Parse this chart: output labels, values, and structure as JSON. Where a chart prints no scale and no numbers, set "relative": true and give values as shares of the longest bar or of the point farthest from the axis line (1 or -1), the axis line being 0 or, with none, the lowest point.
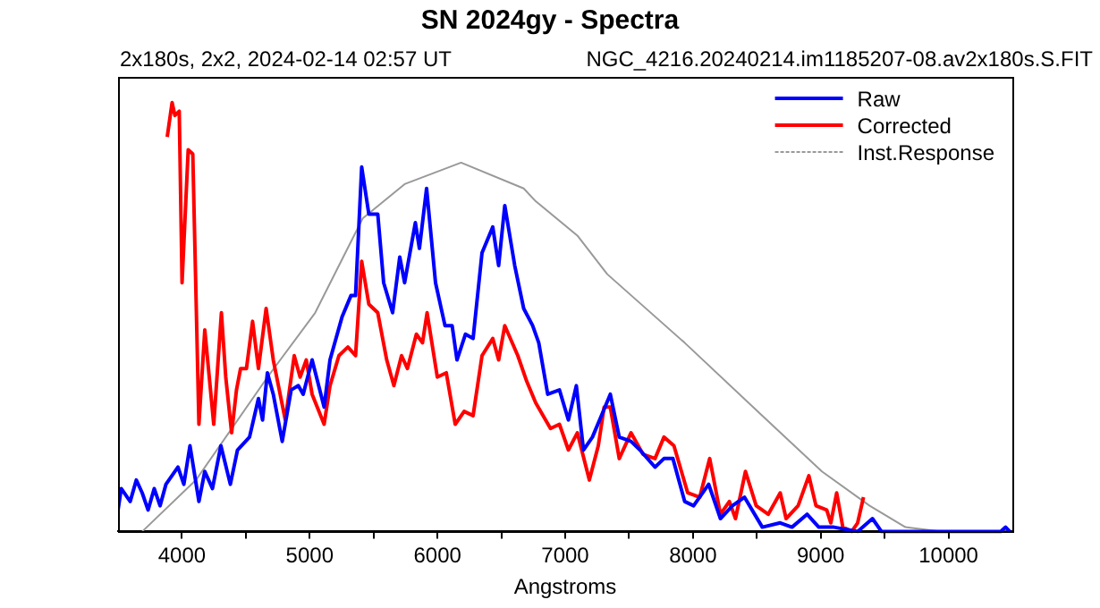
{
  "chart_data": {
    "type": "line",
    "title": "SN 2024gy - Spectra",
    "subtitle": "2x180s, 2x2, 2024-02-14 02:57 UT",
    "xlabel": "Angstroms",
    "relative": true,
    "annotations": [
      "NGC_4216.20240214.im1185207-08.av2x180s.S.FIT"
    ],
    "xlim": [
      3500,
      10500
    ],
    "xticks": [
      4000,
      {
        "value": 4500,
        "label": null
      },
      5000,
      {
        "value": 5500,
        "label": null
      },
      6000,
      {
        "value": 6500,
        "label": null
      },
      7000,
      {
        "value": 7500,
        "label": null
      },
      8000,
      {
        "value": 8500,
        "label": null
      },
      9000,
      {
        "value": 9500,
        "label": null
      },
      10000
    ],
    "grid": false,
    "legend": "top right",
    "marker": "none",
    "line_style": "solid",
    "series": [
      {
        "name": "Raw",
        "color": "#0000ff",
        "x": [
          3500,
          3525,
          3595,
          3643,
          3689,
          3735,
          3783,
          3829,
          3875,
          3969,
          4015,
          4063,
          4133,
          4179,
          4239,
          4305,
          4379,
          4435,
          4529,
          4599,
          4631,
          4669,
          4715,
          4785,
          4855,
          4911,
          4949,
          5019,
          5113,
          5159,
          5253,
          5323,
          5359,
          5407,
          5463,
          5533,
          5579,
          5649,
          5705,
          5743,
          5827,
          5859,
          5915,
          5985,
          6059,
          6115,
          6153,
          6219,
          6279,
          6349,
          6433,
          6479,
          6527,
          6605,
          6675,
          6745,
          6793,
          6863,
          6955,
          7025,
          7087,
          7143,
          7213,
          7283,
          7353,
          7423,
          7515,
          7585,
          7703,
          7773,
          7843,
          7935,
          8005,
          8123,
          8215,
          8309,
          8403,
          8543,
          8683,
          8775,
          8893,
          8985,
          9103,
          9289,
          9405,
          9475,
          9803,
          10409,
          10447,
          10479
        ],
        "values": [
          0.05,
          0.1,
          0.07,
          0.12,
          0.09,
          0.05,
          0.1,
          0.06,
          0.11,
          0.15,
          0.11,
          0.2,
          0.07,
          0.14,
          0.1,
          0.2,
          0.11,
          0.19,
          0.22,
          0.31,
          0.26,
          0.37,
          0.32,
          0.21,
          0.33,
          0.34,
          0.32,
          0.4,
          0.29,
          0.4,
          0.5,
          0.55,
          0.55,
          0.85,
          0.74,
          0.74,
          0.58,
          0.51,
          0.64,
          0.58,
          0.72,
          0.66,
          0.8,
          0.58,
          0.48,
          0.48,
          0.4,
          0.46,
          0.45,
          0.65,
          0.71,
          0.62,
          0.76,
          0.62,
          0.52,
          0.48,
          0.44,
          0.32,
          0.33,
          0.26,
          0.34,
          0.19,
          0.22,
          0.27,
          0.32,
          0.22,
          0.21,
          0.19,
          0.15,
          0.17,
          0.17,
          0.07,
          0.06,
          0.11,
          0.03,
          0.06,
          0.08,
          0.01,
          0.02,
          0.01,
          0.04,
          0.01,
          0.01,
          0.0,
          0.03,
          0.0,
          0.0,
          0.0,
          0.01,
          0.0
        ]
      },
      {
        "name": "Corrected",
        "color": "#ff0000",
        "x": [
          3885,
          3923,
          3945,
          3979,
          4001,
          4049,
          4085,
          4133,
          4179,
          4249,
          4309,
          4343,
          4389,
          4427,
          4459,
          4505,
          4553,
          4599,
          4659,
          4715,
          4809,
          4879,
          4925,
          4973,
          5019,
          5113,
          5159,
          5229,
          5299,
          5359,
          5407,
          5463,
          5533,
          5603,
          5659,
          5719,
          5765,
          5835,
          5883,
          5919,
          5999,
          6069,
          6139,
          6209,
          6279,
          6349,
          6433,
          6479,
          6527,
          6629,
          6699,
          6769,
          6885,
          6955,
          7025,
          7095,
          7189,
          7259,
          7305,
          7353,
          7423,
          7515,
          7609,
          7703,
          7773,
          7851,
          7959,
          8053,
          8131,
          8215,
          8285,
          8333,
          8411,
          8495,
          8589,
          8683,
          8729,
          8823,
          8907,
          8963,
          9047,
          9079,
          9125,
          9173,
          9243,
          9289,
          9335
        ],
        "values": [
          0.92,
          1.0,
          0.97,
          0.98,
          0.58,
          0.89,
          0.88,
          0.25,
          0.47,
          0.25,
          0.51,
          0.36,
          0.23,
          0.33,
          0.38,
          0.38,
          0.49,
          0.38,
          0.52,
          0.4,
          0.26,
          0.41,
          0.36,
          0.4,
          0.32,
          0.25,
          0.34,
          0.41,
          0.43,
          0.41,
          0.63,
          0.53,
          0.51,
          0.4,
          0.34,
          0.41,
          0.38,
          0.46,
          0.44,
          0.51,
          0.36,
          0.37,
          0.25,
          0.28,
          0.27,
          0.41,
          0.45,
          0.4,
          0.48,
          0.41,
          0.35,
          0.3,
          0.24,
          0.25,
          0.19,
          0.23,
          0.12,
          0.2,
          0.29,
          0.29,
          0.17,
          0.23,
          0.18,
          0.17,
          0.22,
          0.2,
          0.09,
          0.08,
          0.17,
          0.04,
          0.07,
          0.03,
          0.14,
          0.06,
          0.04,
          0.09,
          0.03,
          0.06,
          0.13,
          0.06,
          0.05,
          0.02,
          0.09,
          0.01,
          0.0,
          0.02,
          0.08
        ]
      },
      {
        "name": "Inst.Response",
        "color": "#999999",
        "x": [
          3690,
          4110,
          4670,
          5043,
          5415,
          5743,
          6185,
          6675,
          6769,
          7095,
          7329,
          7935,
          8543,
          9009,
          9383,
          9663,
          9943,
          10479
        ],
        "values": [
          0.0,
          0.12,
          0.36,
          0.51,
          0.73,
          0.81,
          0.86,
          0.8,
          0.77,
          0.69,
          0.6,
          0.44,
          0.27,
          0.14,
          0.06,
          0.01,
          0.0,
          0.0
        ]
      }
    ]
  }
}
